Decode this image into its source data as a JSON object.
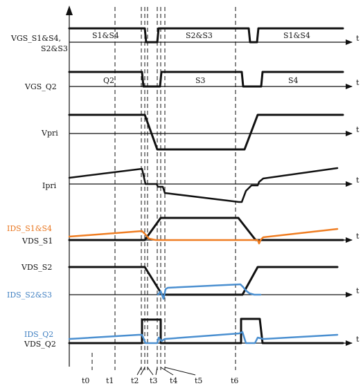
{
  "colors": {
    "black": "#111111",
    "orange": "#ef7d22",
    "blue": "#4a8fd0",
    "blue_label": "#3f7fc1",
    "orange_label": "#e8741c"
  },
  "signals": {
    "vgs_s14_s23": {
      "label_line1": "VGS_S1&S4,",
      "label_line2": "S2&S3"
    },
    "vgs_q2": {
      "label": "VGS_Q2"
    },
    "vpri": {
      "label": "Vpri"
    },
    "ipri": {
      "label": "Ipri"
    },
    "ids_s1s4": {
      "label": "IDS_S1&S4"
    },
    "vds_s1": {
      "label": "VDS_S1"
    },
    "vds_s2": {
      "label": "VDS_S2"
    },
    "ids_s2s3": {
      "label": "IDS_S2&S3"
    },
    "ids_q2": {
      "label": "IDS_Q2"
    },
    "vds_q2": {
      "label": "VDS_Q2"
    }
  },
  "pulse_labels": {
    "s1s4_left": "S1&S4",
    "s2s3_mid": "S2&S3",
    "s1s4_right": "S1&S4",
    "q2": "Q2",
    "s3": "S3",
    "s4": "S4"
  },
  "axis_t": "t",
  "time_markers": [
    "t0",
    "t1",
    "t2",
    "t3",
    "t4",
    "t5",
    "t6"
  ]
}
